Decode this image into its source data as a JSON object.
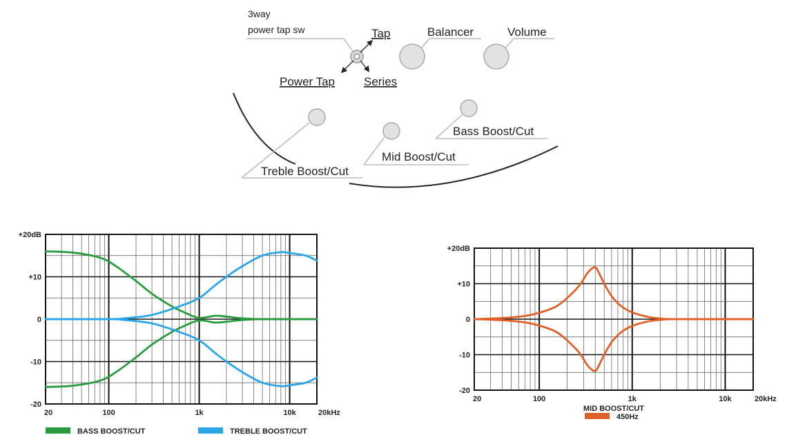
{
  "diagram": {
    "switch_label_line1": "3way",
    "switch_label_line2": "power tap sw",
    "tap": "Tap",
    "power_tap": "Power Tap",
    "series": "Series",
    "balancer": "Balancer",
    "volume": "Volume",
    "treble": "Treble Boost/Cut",
    "mid": "Mid Boost/Cut",
    "bass": "Bass Boost/Cut"
  },
  "colors": {
    "bass": "#2a9a3e",
    "treble": "#2aa6e6",
    "mid": "#e0602a",
    "grid": "#222222"
  },
  "chart_data": [
    {
      "type": "line",
      "x_scale": "log",
      "xlim": [
        20,
        20000
      ],
      "ylim": [
        -20,
        20
      ],
      "grid": true,
      "x_ticks": [
        20,
        100,
        1000,
        10000,
        20000
      ],
      "x_tick_labels": [
        "20",
        "100",
        "1k",
        "10k",
        "20kHz"
      ],
      "y_ticks": [
        20,
        10,
        0,
        -10,
        -20
      ],
      "y_tick_labels": [
        "+20dB",
        "+10",
        "0",
        "-10",
        "-20"
      ],
      "legend": [
        {
          "label": "BASS BOOST/CUT",
          "color": "#2a9a3e"
        },
        {
          "label": "TREBLE BOOST/CUT",
          "color": "#2aa6e6"
        }
      ],
      "series": [
        {
          "name": "BASS BOOST/CUT",
          "x": [
            20,
            40,
            80,
            120,
            200,
            300,
            500,
            700,
            1000,
            1500,
            2000,
            3000,
            5000,
            20000
          ],
          "y": [
            16,
            15.7,
            14.5,
            12.5,
            9,
            6,
            3,
            1.5,
            0.3,
            0.8,
            0.6,
            0.2,
            0,
            0
          ]
        },
        {
          "name": "BASS BOOST/CUT",
          "x": [
            20,
            40,
            80,
            120,
            200,
            300,
            500,
            700,
            1000,
            1500,
            2000,
            3000,
            5000,
            20000
          ],
          "y": [
            -16,
            -15.7,
            -14.5,
            -12.5,
            -9,
            -6,
            -3,
            -1.5,
            -0.3,
            -0.8,
            -0.6,
            -0.2,
            0,
            0
          ]
        },
        {
          "name": "TREBLE BOOST/CUT",
          "x": [
            20,
            100,
            150,
            300,
            600,
            1000,
            1500,
            2000,
            3000,
            5000,
            8000,
            10000,
            15000,
            20000
          ],
          "y": [
            0,
            0,
            0.2,
            1,
            3,
            5,
            8,
            10,
            12.5,
            15,
            15.8,
            15.6,
            15,
            13.8
          ]
        },
        {
          "name": "TREBLE BOOST/CUT",
          "x": [
            20,
            100,
            150,
            300,
            600,
            1000,
            1500,
            2000,
            3000,
            5000,
            8000,
            10000,
            15000,
            20000
          ],
          "y": [
            0,
            0,
            -0.2,
            -1,
            -3,
            -5,
            -8,
            -10,
            -12.5,
            -15,
            -15.8,
            -15.6,
            -15,
            -13.8
          ]
        }
      ]
    },
    {
      "type": "line",
      "x_scale": "log",
      "xlim": [
        20,
        20000
      ],
      "ylim": [
        -20,
        20
      ],
      "grid": true,
      "x_ticks": [
        20,
        100,
        1000,
        10000,
        20000
      ],
      "x_tick_labels": [
        "20",
        "100",
        "1k",
        "10k",
        "20kHz"
      ],
      "y_ticks": [
        20,
        10,
        0,
        -10,
        -20
      ],
      "y_tick_labels": [
        "+20dB",
        "+10",
        "0",
        "-10",
        "-20"
      ],
      "xlabel": "MID BOOST/CUT",
      "legend": [
        {
          "label": "450Hz",
          "color": "#e0602a"
        }
      ],
      "series": [
        {
          "name": "450Hz",
          "x": [
            20,
            40,
            70,
            100,
            150,
            200,
            270,
            330,
            380,
            400,
            420,
            500,
            600,
            750,
            1000,
            1500,
            2000,
            3000,
            20000
          ],
          "y": [
            0,
            0.3,
            0.9,
            1.8,
            3.5,
            6,
            9.5,
            13,
            14.5,
            14.5,
            14,
            10,
            6.5,
            3.8,
            1.9,
            0.6,
            0.2,
            0,
            0
          ]
        },
        {
          "name": "450Hz",
          "x": [
            20,
            40,
            70,
            100,
            150,
            200,
            270,
            330,
            380,
            400,
            420,
            500,
            600,
            750,
            1000,
            1500,
            2000,
            3000,
            20000
          ],
          "y": [
            0,
            -0.3,
            -0.9,
            -1.8,
            -3.5,
            -6,
            -9.5,
            -13,
            -14.5,
            -14.5,
            -14,
            -10,
            -6.5,
            -3.8,
            -1.9,
            -0.6,
            -0.2,
            0,
            0
          ]
        }
      ]
    }
  ]
}
